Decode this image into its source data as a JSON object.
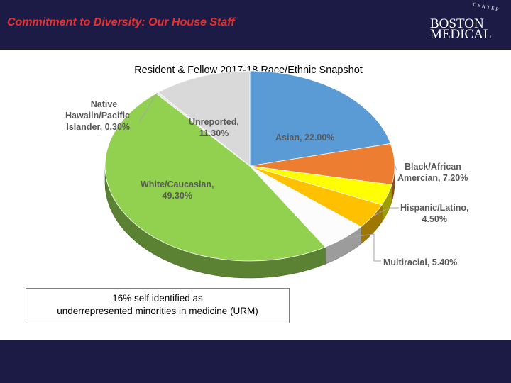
{
  "header": {
    "title": "Commitment to Diversity: Our House Staff",
    "logo_line1": "BOSTON",
    "logo_line2": "MEDICAL",
    "logo_arc": "CENTER"
  },
  "colors": {
    "header_bg": "#1c1b46",
    "title_red": "#e8312f",
    "asian": "#5b9bd5",
    "black": "#ed7d31",
    "yellow": "#ffff00",
    "hispanic": "#ffc000",
    "multiracial": "#f5f5f5",
    "white": "#92d050",
    "unreported": "#d9d9d9"
  },
  "chart_data": {
    "type": "pie",
    "title": "Resident & Fellow 2017-18 Race/Ethnic Snapshot",
    "slices": [
      {
        "name": "Asian",
        "value": 22.0,
        "color": "#5b9bd5",
        "line1": "Asian, 22.00%"
      },
      {
        "name": "Black/African Amercian",
        "value": 7.2,
        "color": "#ed7d31",
        "line1": "Black/African",
        "line2": "Amercian, 7.20%"
      },
      {
        "name": "",
        "value": 3.7,
        "color": "#ffff00"
      },
      {
        "name": "Hispanic/Latino",
        "value": 4.5,
        "color": "#ffc000",
        "line1": "Hispanic/Latino,",
        "line2": "4.50%"
      },
      {
        "name": "Multiracial",
        "value": 5.4,
        "color": "#fcfcfc",
        "line1": "Multiracial, 5.40%"
      },
      {
        "name": "White/Caucasian",
        "value": 49.3,
        "color": "#92d050",
        "line1": "White/Caucasian,",
        "line2": "49.30%"
      },
      {
        "name": "Native Hawaiin/Pacific Islander",
        "value": 0.3,
        "color": "#e7e6e6",
        "line1": "Native",
        "line2": "Hawaiin/Pacific",
        "line3": "Islander, 0.30%"
      },
      {
        "name": "Unreported",
        "value": 11.3,
        "color": "#d9d9d9",
        "line1": "Unreported,",
        "line2": "11.30%"
      }
    ]
  },
  "note": {
    "line1": "16% self identified as",
    "line2": "underrepresented minorities in medicine (URM)"
  }
}
